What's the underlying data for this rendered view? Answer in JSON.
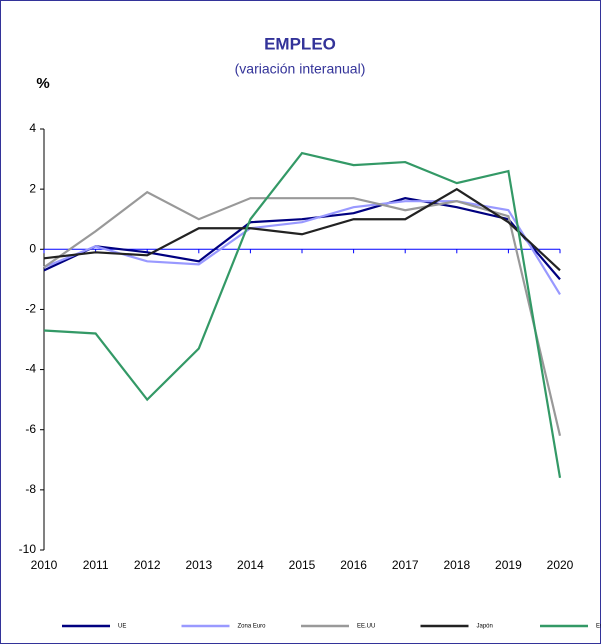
{
  "chart_data": {
    "type": "line",
    "title": "EMPLEO",
    "subtitle": "(variación interanual)",
    "y_label": "%",
    "categories": [
      "2010",
      "2011",
      "2012",
      "2013",
      "2014",
      "2015",
      "2016",
      "2017",
      "2018",
      "2019",
      "2020"
    ],
    "series": [
      {
        "name": "UE",
        "color": "#000080",
        "values": [
          -0.7,
          0.1,
          -0.1,
          -0.4,
          0.9,
          1.0,
          1.2,
          1.7,
          1.4,
          1.0,
          -1.0
        ]
      },
      {
        "name": "Zona Euro",
        "color": "#9999ff",
        "values": [
          -0.6,
          0.1,
          -0.4,
          -0.5,
          0.7,
          0.9,
          1.4,
          1.6,
          1.6,
          1.3,
          -1.5
        ]
      },
      {
        "name": "EE.UU",
        "color": "#999999",
        "values": [
          -0.6,
          0.6,
          1.9,
          1.0,
          1.7,
          1.7,
          1.7,
          1.3,
          1.6,
          1.1,
          -6.2
        ]
      },
      {
        "name": "Japón",
        "color": "#222222",
        "values": [
          -0.3,
          -0.1,
          -0.2,
          0.7,
          0.7,
          0.5,
          1.0,
          1.0,
          2.0,
          0.9,
          -0.7
        ]
      },
      {
        "name": "España",
        "color": "#339966",
        "values": [
          -2.7,
          -2.8,
          -5.0,
          -3.3,
          1.0,
          3.2,
          2.8,
          2.9,
          2.2,
          2.6,
          -7.6
        ]
      }
    ],
    "ylim": [
      -10,
      4
    ],
    "yticks": [
      -10,
      -8,
      -6,
      -4,
      -2,
      0,
      2,
      4
    ],
    "legend": "bottom"
  }
}
